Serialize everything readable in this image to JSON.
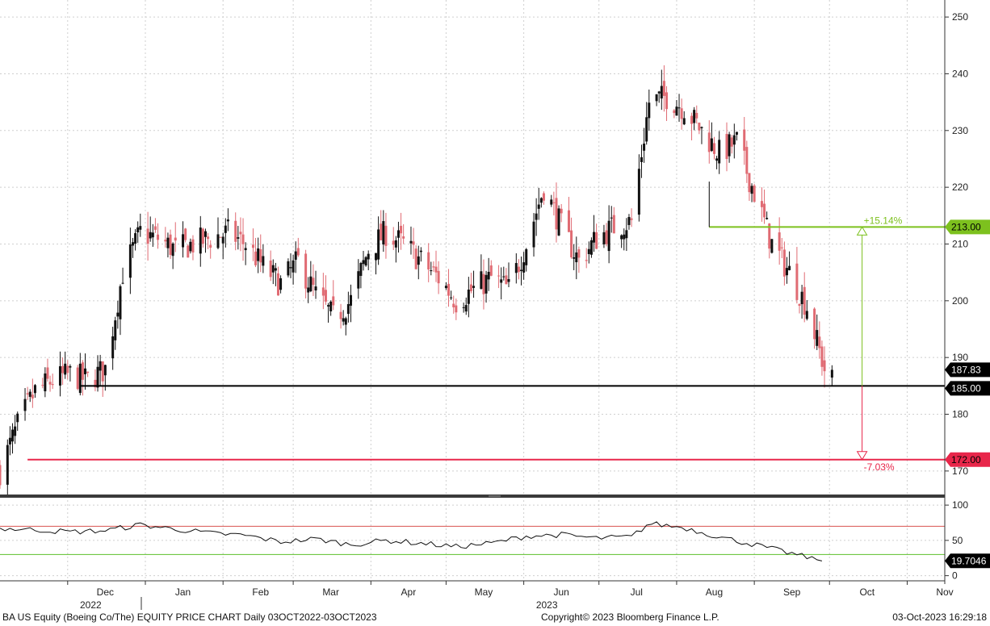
{
  "chart_data": {
    "type": "candlestick",
    "ticker_caption": "BA US Equity (Boeing Co/The) EQUITY PRICE CHART  Daily 03OCT2022-03OCT2023",
    "copyright": "Copyright© 2023 Bloomberg Finance L.P.",
    "timestamp": "03-Oct-2023 16:29:18",
    "price_axis": {
      "ylim": [
        166,
        253
      ],
      "ticks": [
        250,
        240,
        230,
        220,
        210,
        200,
        190,
        180,
        170
      ]
    },
    "rsi_axis": {
      "ylim": [
        -5,
        107
      ],
      "ticks": [
        100,
        50,
        0
      ]
    },
    "months": [
      {
        "label": "Dec",
        "date": "2022-12-01"
      },
      {
        "label": "Jan",
        "date": "2023-01-01"
      },
      {
        "label": "Feb",
        "date": "2023-02-01"
      },
      {
        "label": "Mar",
        "date": "2023-03-01"
      },
      {
        "label": "Apr",
        "date": "2023-04-01"
      },
      {
        "label": "May",
        "date": "2023-05-01"
      },
      {
        "label": "Jun",
        "date": "2023-06-01"
      },
      {
        "label": "Jul",
        "date": "2023-07-01"
      },
      {
        "label": "Aug",
        "date": "2023-08-01"
      },
      {
        "label": "Sep",
        "date": "2023-09-01"
      },
      {
        "label": "Oct",
        "date": "2023-10-01"
      },
      {
        "label": "Nov",
        "date": "2023-11-01"
      }
    ],
    "years": [
      {
        "label": "2022",
        "date": "2022-12-01"
      },
      {
        "label": "2023",
        "date": "2023-06-01"
      }
    ],
    "x_range": [
      "2022-11-04",
      "2023-11-16"
    ],
    "price_path": [
      [
        "2022-11-04",
        170
      ],
      [
        "2022-11-11",
        178
      ],
      [
        "2022-11-18",
        184
      ],
      [
        "2022-11-25",
        186
      ],
      [
        "2022-12-02",
        187
      ],
      [
        "2022-12-09",
        186
      ],
      [
        "2022-12-16",
        188
      ],
      [
        "2022-12-23",
        205
      ],
      [
        "2022-12-30",
        212
      ],
      [
        "2023-01-06",
        211
      ],
      [
        "2023-01-13",
        209
      ],
      [
        "2023-01-20",
        210
      ],
      [
        "2023-01-27",
        211
      ],
      [
        "2023-02-03",
        212
      ],
      [
        "2023-02-10",
        210
      ],
      [
        "2023-02-17",
        206
      ],
      [
        "2023-02-24",
        203
      ],
      [
        "2023-03-03",
        207
      ],
      [
        "2023-03-10",
        201
      ],
      [
        "2023-03-17",
        197
      ],
      [
        "2023-03-24",
        200
      ],
      [
        "2023-03-31",
        209
      ],
      [
        "2023-04-07",
        212
      ],
      [
        "2023-04-14",
        210
      ],
      [
        "2023-04-21",
        207
      ],
      [
        "2023-04-28",
        204
      ],
      [
        "2023-05-05",
        200
      ],
      [
        "2023-05-12",
        202
      ],
      [
        "2023-05-19",
        204
      ],
      [
        "2023-05-26",
        202
      ],
      [
        "2023-06-02",
        210
      ],
      [
        "2023-06-09",
        220
      ],
      [
        "2023-06-16",
        213
      ],
      [
        "2023-06-23",
        207
      ],
      [
        "2023-06-30",
        211
      ],
      [
        "2023-07-07",
        213
      ],
      [
        "2023-07-14",
        214
      ],
      [
        "2023-07-21",
        235
      ],
      [
        "2023-07-28",
        236
      ],
      [
        "2023-08-04",
        234
      ],
      [
        "2023-08-11",
        230
      ],
      [
        "2023-08-18",
        226
      ],
      [
        "2023-08-25",
        228
      ],
      [
        "2023-09-01",
        219
      ],
      [
        "2023-09-08",
        210
      ],
      [
        "2023-09-15",
        205
      ],
      [
        "2023-09-22",
        199
      ],
      [
        "2023-09-29",
        188
      ]
    ],
    "last_price": 187.83,
    "levels": [
      {
        "value": 213.0,
        "label": "213.00",
        "color": "#7dc11e"
      },
      {
        "value": 185.0,
        "label": "185.00",
        "color": "#000000"
      },
      {
        "value": 172.0,
        "label": "172.00",
        "color": "#e8264a"
      }
    ],
    "last_price_label": "187.83",
    "annotations": [
      {
        "text": "+15.14%",
        "color": "#7dc11e"
      },
      {
        "text": "-7.03%",
        "color": "#e8264a"
      }
    ],
    "rsi": {
      "last_value_label": "19.7046",
      "upper_line": 70,
      "lower_line": 30,
      "upper_color": "#d9534f",
      "lower_color": "#5cbf2a",
      "path": [
        [
          "2022-11-04",
          67
        ],
        [
          "2022-11-18",
          65
        ],
        [
          "2022-12-02",
          62
        ],
        [
          "2022-12-16",
          64
        ],
        [
          "2022-12-30",
          72
        ],
        [
          "2023-01-13",
          66
        ],
        [
          "2023-01-27",
          60
        ],
        [
          "2023-02-10",
          57
        ],
        [
          "2023-02-24",
          48
        ],
        [
          "2023-03-10",
          52
        ],
        [
          "2023-03-24",
          44
        ],
        [
          "2023-04-07",
          50
        ],
        [
          "2023-04-21",
          46
        ],
        [
          "2023-05-05",
          41
        ],
        [
          "2023-05-19",
          46
        ],
        [
          "2023-06-02",
          56
        ],
        [
          "2023-06-16",
          58
        ],
        [
          "2023-06-30",
          53
        ],
        [
          "2023-07-14",
          55
        ],
        [
          "2023-07-21",
          74
        ],
        [
          "2023-08-04",
          68
        ],
        [
          "2023-08-18",
          55
        ],
        [
          "2023-09-01",
          44
        ],
        [
          "2023-09-15",
          32
        ],
        [
          "2023-09-29",
          20
        ]
      ]
    },
    "colors": {
      "up": "#111111",
      "down": "#e06b73",
      "grid": "#cfcfcf",
      "separator": "#3a3a3a"
    }
  }
}
